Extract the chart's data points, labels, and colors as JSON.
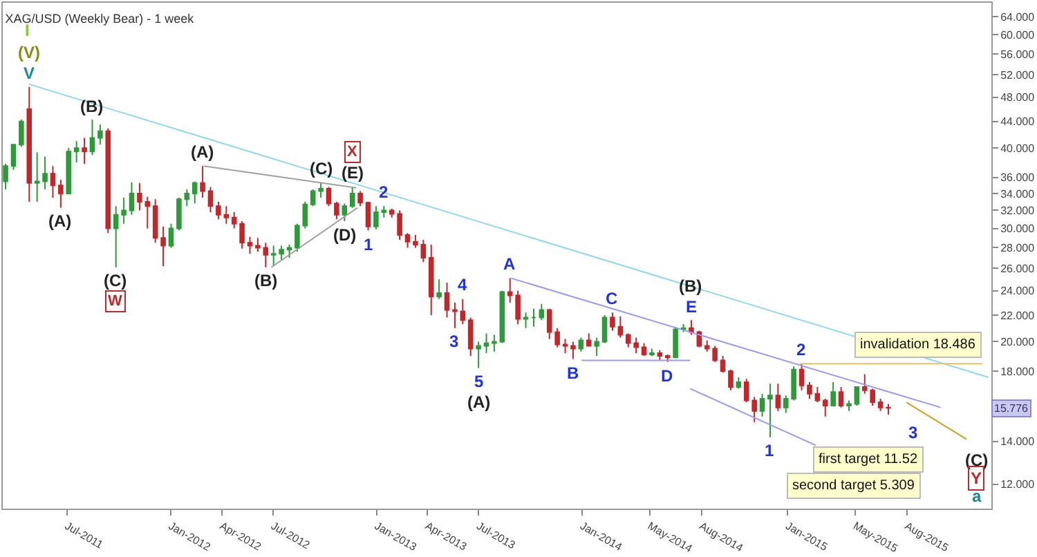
{
  "chart_data": {
    "type": "candlestick",
    "title": "XAG/USD (Weekly Bear) - 1 week",
    "x": [
      "2011-03-14",
      "2011-03-28",
      "2011-04-11",
      "2011-04-25",
      "2011-05-09",
      "2011-05-23",
      "2011-06-06",
      "2011-06-20",
      "2011-07-04",
      "2011-07-18",
      "2011-08-01",
      "2011-08-15",
      "2011-08-29",
      "2011-09-12",
      "2011-09-26",
      "2011-10-10",
      "2011-10-24",
      "2011-11-07",
      "2011-11-21",
      "2011-12-05",
      "2011-12-19",
      "2012-01-02",
      "2012-01-16",
      "2012-01-30",
      "2012-02-13",
      "2012-02-27",
      "2012-03-12",
      "2012-03-26",
      "2012-04-09",
      "2012-04-23",
      "2012-05-07",
      "2012-05-21",
      "2012-06-04",
      "2012-06-18",
      "2012-07-02",
      "2012-07-16",
      "2012-07-30",
      "2012-08-13",
      "2012-08-27",
      "2012-09-10",
      "2012-09-24",
      "2012-10-08",
      "2012-10-22",
      "2012-11-05",
      "2012-11-19",
      "2012-12-03",
      "2012-12-17",
      "2012-12-31",
      "2013-01-14",
      "2013-01-28",
      "2013-02-11",
      "2013-02-25",
      "2013-03-11",
      "2013-03-25",
      "2013-04-08",
      "2013-04-22",
      "2013-05-06",
      "2013-05-20",
      "2013-06-03",
      "2013-06-17",
      "2013-07-01",
      "2013-07-15",
      "2013-07-29",
      "2013-08-12",
      "2013-08-26",
      "2013-09-09",
      "2013-09-23",
      "2013-10-07",
      "2013-10-21",
      "2013-11-04",
      "2013-11-18",
      "2013-12-02",
      "2013-12-16",
      "2013-12-30",
      "2014-01-13",
      "2014-01-27",
      "2014-02-10",
      "2014-02-24",
      "2014-03-10",
      "2014-03-24",
      "2014-04-07",
      "2014-04-21",
      "2014-05-05",
      "2014-05-19",
      "2014-06-02",
      "2014-06-16",
      "2014-06-30",
      "2014-07-14",
      "2014-07-28",
      "2014-08-11",
      "2014-08-25",
      "2014-09-08",
      "2014-09-22",
      "2014-10-06",
      "2014-10-20",
      "2014-11-03",
      "2014-11-17",
      "2014-12-01",
      "2014-12-15",
      "2014-12-29",
      "2015-01-12",
      "2015-01-26",
      "2015-02-09",
      "2015-02-23",
      "2015-03-09",
      "2015-03-23",
      "2015-04-06",
      "2015-04-20",
      "2015-05-04",
      "2015-05-18",
      "2015-06-01",
      "2015-06-15",
      "2015-06-29"
    ],
    "ohlc": [
      [
        35.5,
        37.8,
        34.5,
        37.5
      ],
      [
        37.5,
        40.6,
        37.0,
        40.5
      ],
      [
        40.5,
        44.3,
        40.2,
        44.0
      ],
      [
        46.0,
        49.8,
        33.0,
        35.3
      ],
      [
        35.3,
        39.4,
        33.0,
        35.5
      ],
      [
        35.5,
        38.8,
        34.5,
        36.5
      ],
      [
        36.5,
        37.5,
        33.5,
        35.0
      ],
      [
        35.0,
        35.7,
        32.3,
        34.0
      ],
      [
        34.0,
        40.0,
        34.0,
        39.5
      ],
      [
        39.5,
        41.0,
        38.0,
        40.0
      ],
      [
        40.0,
        41.5,
        37.8,
        39.5
      ],
      [
        39.5,
        44.3,
        39.0,
        41.5
      ],
      [
        41.5,
        43.5,
        40.5,
        42.5
      ],
      [
        42.5,
        42.9,
        29.5,
        30.0
      ],
      [
        30.0,
        32.5,
        26.1,
        31.5
      ],
      [
        31.5,
        33.5,
        30.5,
        32.0
      ],
      [
        32.0,
        35.4,
        31.5,
        34.0
      ],
      [
        34.0,
        35.3,
        32.0,
        33.0
      ],
      [
        33.0,
        33.6,
        30.0,
        32.5
      ],
      [
        32.5,
        33.3,
        28.5,
        29.0
      ],
      [
        29.0,
        30.2,
        26.2,
        28.2
      ],
      [
        28.2,
        30.5,
        28.0,
        30.0
      ],
      [
        30.0,
        33.5,
        29.8,
        33.3
      ],
      [
        33.3,
        34.5,
        32.5,
        34.0
      ],
      [
        34.0,
        35.5,
        32.8,
        35.3
      ],
      [
        35.3,
        37.5,
        33.5,
        34.3
      ],
      [
        34.3,
        34.8,
        31.8,
        32.5
      ],
      [
        32.5,
        33.0,
        31.0,
        31.5
      ],
      [
        31.5,
        32.5,
        30.5,
        31.2
      ],
      [
        31.2,
        31.8,
        30.0,
        30.5
      ],
      [
        30.5,
        30.8,
        27.9,
        28.5
      ],
      [
        28.5,
        29.1,
        27.4,
        28.2
      ],
      [
        28.2,
        29.0,
        27.6,
        28.0
      ],
      [
        28.0,
        28.5,
        26.1,
        27.3
      ],
      [
        27.3,
        28.2,
        26.2,
        27.4
      ],
      [
        27.4,
        28.2,
        26.8,
        27.8
      ],
      [
        27.8,
        28.3,
        27.0,
        28.0
      ],
      [
        28.0,
        30.5,
        27.6,
        30.3
      ],
      [
        30.3,
        33.0,
        30.0,
        32.7
      ],
      [
        32.7,
        34.5,
        32.5,
        34.3
      ],
      [
        34.3,
        35.4,
        33.5,
        34.6
      ],
      [
        34.6,
        34.8,
        32.5,
        32.8
      ],
      [
        32.8,
        33.0,
        31.0,
        31.5
      ],
      [
        31.5,
        32.8,
        30.8,
        32.5
      ],
      [
        32.5,
        34.8,
        32.3,
        34.0
      ],
      [
        34.0,
        34.3,
        32.5,
        32.9
      ],
      [
        32.9,
        33.0,
        29.8,
        30.2
      ],
      [
        30.2,
        32.5,
        29.9,
        31.8
      ],
      [
        31.8,
        32.5,
        31.2,
        32.0
      ],
      [
        32.0,
        32.2,
        31.2,
        31.6
      ],
      [
        31.6,
        32.0,
        28.8,
        29.3
      ],
      [
        29.3,
        29.5,
        28.0,
        28.6
      ],
      [
        28.6,
        29.3,
        28.0,
        28.3
      ],
      [
        28.3,
        28.8,
        26.6,
        27.0
      ],
      [
        27.0,
        28.3,
        22.0,
        23.5
      ],
      [
        23.5,
        25.0,
        23.3,
        23.8
      ],
      [
        23.8,
        24.7,
        21.8,
        22.4
      ],
      [
        22.4,
        23.0,
        21.0,
        22.3
      ],
      [
        22.3,
        23.3,
        21.3,
        21.6
      ],
      [
        21.6,
        21.8,
        19.0,
        19.5
      ],
      [
        19.5,
        20.0,
        18.2,
        19.7
      ],
      [
        19.7,
        20.6,
        19.2,
        19.9
      ],
      [
        19.9,
        20.5,
        19.3,
        20.0
      ],
      [
        20.0,
        24.0,
        19.9,
        23.9
      ],
      [
        23.9,
        25.1,
        23.0,
        23.6
      ],
      [
        23.6,
        24.0,
        21.3,
        21.7
      ],
      [
        21.7,
        22.2,
        21.0,
        21.8
      ],
      [
        21.8,
        22.5,
        21.1,
        21.8
      ],
      [
        21.8,
        22.9,
        21.6,
        22.4
      ],
      [
        22.4,
        22.5,
        20.2,
        20.7
      ],
      [
        20.7,
        21.0,
        19.6,
        19.8
      ],
      [
        19.8,
        20.2,
        19.2,
        19.7
      ],
      [
        19.7,
        20.0,
        18.8,
        19.5
      ],
      [
        19.5,
        20.3,
        19.3,
        20.1
      ],
      [
        20.1,
        20.6,
        19.7,
        19.7
      ],
      [
        19.7,
        20.3,
        19.0,
        20.0
      ],
      [
        20.0,
        22.0,
        19.9,
        21.8
      ],
      [
        21.8,
        22.2,
        20.8,
        21.1
      ],
      [
        21.1,
        21.9,
        20.3,
        20.5
      ],
      [
        20.5,
        20.6,
        19.6,
        19.9
      ],
      [
        19.9,
        20.3,
        19.2,
        19.6
      ],
      [
        19.6,
        19.9,
        19.0,
        19.1
      ],
      [
        19.1,
        19.5,
        19.0,
        19.2
      ],
      [
        19.2,
        19.4,
        18.7,
        19.0
      ],
      [
        19.0,
        19.1,
        18.6,
        18.9
      ],
      [
        18.9,
        21.1,
        18.9,
        20.9
      ],
      [
        20.9,
        21.3,
        20.7,
        21.0
      ],
      [
        21.0,
        21.6,
        20.5,
        20.7
      ],
      [
        20.7,
        20.8,
        19.6,
        19.7
      ],
      [
        19.7,
        20.1,
        19.3,
        19.5
      ],
      [
        19.5,
        19.7,
        18.6,
        18.7
      ],
      [
        18.7,
        19.0,
        17.9,
        18.0
      ],
      [
        18.0,
        18.1,
        16.8,
        17.0
      ],
      [
        17.0,
        17.6,
        16.9,
        17.3
      ],
      [
        17.3,
        17.5,
        16.1,
        16.2
      ],
      [
        16.2,
        16.4,
        15.0,
        15.6
      ],
      [
        15.6,
        16.6,
        15.3,
        16.3
      ],
      [
        16.3,
        17.2,
        14.2,
        16.5
      ],
      [
        16.5,
        17.2,
        15.6,
        15.8
      ],
      [
        15.8,
        16.5,
        15.5,
        16.3
      ],
      [
        16.3,
        18.3,
        16.2,
        18.1
      ],
      [
        18.1,
        18.5,
        16.8,
        17.1
      ],
      [
        17.1,
        17.3,
        16.3,
        16.6
      ],
      [
        16.6,
        17.0,
        16.1,
        16.2
      ],
      [
        16.2,
        16.3,
        15.3,
        15.9
      ],
      [
        15.9,
        17.3,
        15.9,
        16.7
      ],
      [
        16.7,
        17.0,
        15.8,
        15.9
      ],
      [
        15.9,
        16.2,
        15.6,
        16.0
      ],
      [
        16.0,
        17.0,
        15.9,
        17.0
      ],
      [
        17.0,
        17.8,
        16.6,
        16.8
      ],
      [
        16.8,
        16.9,
        15.9,
        16.1
      ],
      [
        16.1,
        16.3,
        15.6,
        15.8
      ],
      [
        15.8,
        16.0,
        15.4,
        15.776
      ]
    ],
    "series": [
      {
        "type": "line",
        "color": "#8fd8ee",
        "x": [
          "2011-04-24",
          "2015-12-24"
        ],
        "values": [
          50.3,
          17.6
        ]
      },
      {
        "type": "line",
        "color": "#9a9af0",
        "x": [
          "2013-08-28",
          "2015-09-30"
        ],
        "values": [
          25.1,
          15.8
        ]
      },
      {
        "type": "line",
        "color": "#9a9af0",
        "x": [
          "2014-07-12",
          "2015-02-20"
        ],
        "values": [
          16.9,
          13.8
        ]
      },
      {
        "type": "line",
        "color": "#9a9af0",
        "x": [
          "2013-12-31",
          "2014-07-12"
        ],
        "values": [
          18.7,
          18.7
        ]
      },
      {
        "type": "line",
        "color": "#a0a0a0",
        "x": [
          "2012-02-29",
          "2012-11-26"
        ],
        "values": [
          37.5,
          34.7
        ]
      },
      {
        "type": "line",
        "color": "#a0a0a0",
        "x": [
          "2012-06-28",
          "2012-11-28"
        ],
        "values": [
          26.1,
          32.3
        ]
      },
      {
        "type": "line",
        "color": "#f0c060",
        "x": [
          "2015-01-23",
          "2015-12-13"
        ],
        "values": [
          18.486,
          18.486
        ]
      },
      {
        "type": "line",
        "color": "#d4a017",
        "x": [
          "2015-07-31",
          "2015-11-15"
        ],
        "values": [
          16.1,
          14.1
        ]
      }
    ],
    "annotations": [
      {
        "text": "(V)",
        "x": "2011-04-25",
        "y": 49.8
      },
      {
        "text": "V",
        "x": "2011-04-25",
        "y": 49.8
      },
      {
        "text": "(B)",
        "x": "2011-08-15",
        "y": 44.3
      },
      {
        "text": "(A)",
        "x": "2011-06-20",
        "y": 32.3
      },
      {
        "text": "(C)",
        "x": "2011-09-26",
        "y": 26.1
      },
      {
        "text": "W",
        "x": "2011-09-26",
        "y": 26.1
      },
      {
        "text": "(A)",
        "x": "2012-02-27",
        "y": 37.5
      },
      {
        "text": "(B)",
        "x": "2012-06-18",
        "y": 26.1
      },
      {
        "text": "(C)",
        "x": "2012-09-24",
        "y": 35.4
      },
      {
        "text": "(D)",
        "x": "2012-11-05",
        "y": 30.8
      },
      {
        "text": "X",
        "x": "2012-11-19",
        "y": 34.8
      },
      {
        "text": "(E)",
        "x": "2012-11-19",
        "y": 34.8
      },
      {
        "text": "2",
        "x": "2013-01-14",
        "y": 32.5
      },
      {
        "text": "1",
        "x": "2012-12-17",
        "y": 29.8
      },
      {
        "text": "3",
        "x": "2013-05-20",
        "y": 21.0
      },
      {
        "text": "4",
        "x": "2013-06-03",
        "y": 23.3
      },
      {
        "text": "5",
        "x": "2013-07-01",
        "y": 18.2
      },
      {
        "text": "(A)",
        "x": "2013-07-01",
        "y": 18.2
      },
      {
        "text": "A",
        "x": "2013-08-26",
        "y": 25.1
      },
      {
        "text": "B",
        "x": "2013-12-16",
        "y": 18.8
      },
      {
        "text": "C",
        "x": "2014-02-24",
        "y": 22.2
      },
      {
        "text": "D",
        "x": "2014-06-02",
        "y": 18.6
      },
      {
        "text": "(B)",
        "x": "2014-07-14",
        "y": 21.6
      },
      {
        "text": "E",
        "x": "2014-07-14",
        "y": 21.6
      },
      {
        "text": "1",
        "x": "2014-12-01",
        "y": 14.2
      },
      {
        "text": "2",
        "x": "2015-01-26",
        "y": 18.5
      },
      {
        "text": "invalidation 18.486",
        "x": "2015-12-13",
        "y": 18.486
      },
      {
        "text": "15.776",
        "y": 15.776
      },
      "I",
      "3",
      "(C)",
      "Y",
      "a",
      "first target 11.52",
      "second target 5.309"
    ],
    "ylim": [
      11.0,
      67.3
    ],
    "log": true,
    "yticks": [
      {
        "value": 12,
        "label": "12.000"
      },
      {
        "value": 14,
        "label": "14.000"
      },
      {
        "value": 18,
        "label": "18.000"
      },
      {
        "value": 20,
        "label": "20.000"
      },
      {
        "value": 22,
        "label": "22.000"
      },
      {
        "value": 24,
        "label": "24.000"
      },
      {
        "value": 26,
        "label": "26.000"
      },
      {
        "value": 28,
        "label": "28.000"
      },
      {
        "value": 30,
        "label": "30.000"
      },
      {
        "value": 32,
        "label": "32.000"
      },
      {
        "value": 34,
        "label": "34.000"
      },
      {
        "value": 36,
        "label": "36.000"
      },
      {
        "value": 40,
        "label": "40.000"
      },
      {
        "value": 44,
        "label": "44.000"
      },
      {
        "value": 48,
        "label": "48.000"
      },
      {
        "value": 52,
        "label": "52.000"
      },
      {
        "value": 56,
        "label": "56.000"
      },
      {
        "value": 60,
        "label": "60.000"
      },
      {
        "value": 64,
        "label": "64.000"
      }
    ],
    "xlim": [
      "2011-03-09",
      "2015-12-29"
    ],
    "xticks": [
      {
        "value": "2011-07-01",
        "label": "Jul-2011"
      },
      {
        "value": "2012-01-01",
        "label": "Jan-2012"
      },
      {
        "value": "2012-04-01",
        "label": "Apr-2012"
      },
      {
        "value": "2012-07-01",
        "label": "Jul-2012"
      },
      {
        "value": "2013-01-01",
        "label": "Jan-2013"
      },
      {
        "value": "2013-04-01",
        "label": "Apr-2013"
      },
      {
        "value": "2013-07-01",
        "label": "Jul-2013"
      },
      {
        "value": "2014-01-01",
        "label": "Jan-2014"
      },
      {
        "value": "2014-05-01",
        "label": "May-2014"
      },
      {
        "value": "2014-08-01",
        "label": "Aug-2014"
      },
      {
        "value": "2015-01-01",
        "label": "Jan-2015"
      },
      {
        "value": "2015-05-01",
        "label": "May-2015"
      },
      {
        "value": "2015-08-01",
        "label": "Aug-2015"
      }
    ],
    "grid": false
  }
}
